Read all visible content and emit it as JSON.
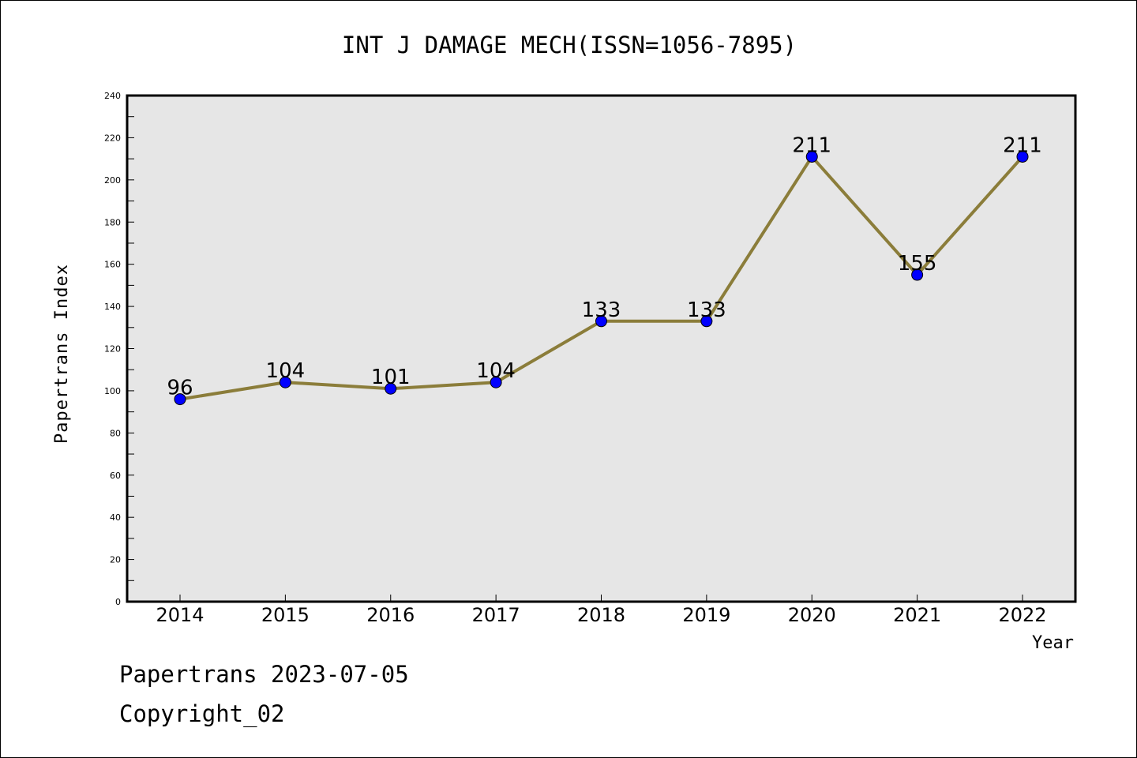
{
  "chart_data": {
    "type": "line",
    "title": "INT J DAMAGE MECH(ISSN=1056-7895)",
    "xlabel": "Year",
    "ylabel": "Papertrans Index",
    "categories": [
      "2014",
      "2015",
      "2016",
      "2017",
      "2018",
      "2019",
      "2020",
      "2021",
      "2022"
    ],
    "values": [
      96,
      104,
      101,
      104,
      133,
      133,
      211,
      155,
      211
    ],
    "ylim": [
      0,
      240
    ],
    "yticks": [
      0,
      20,
      40,
      60,
      80,
      100,
      120,
      140,
      160,
      180,
      200,
      220,
      240
    ],
    "grid": false,
    "legend": "none",
    "colors": {
      "line": "#8b7d3a",
      "marker": "#0000ff",
      "plot_background": "#e6e6e6",
      "axes": "#000000"
    }
  },
  "footer": {
    "date_line": "Papertrans 2023-07-05",
    "copyright_line": "Copyright_02"
  }
}
